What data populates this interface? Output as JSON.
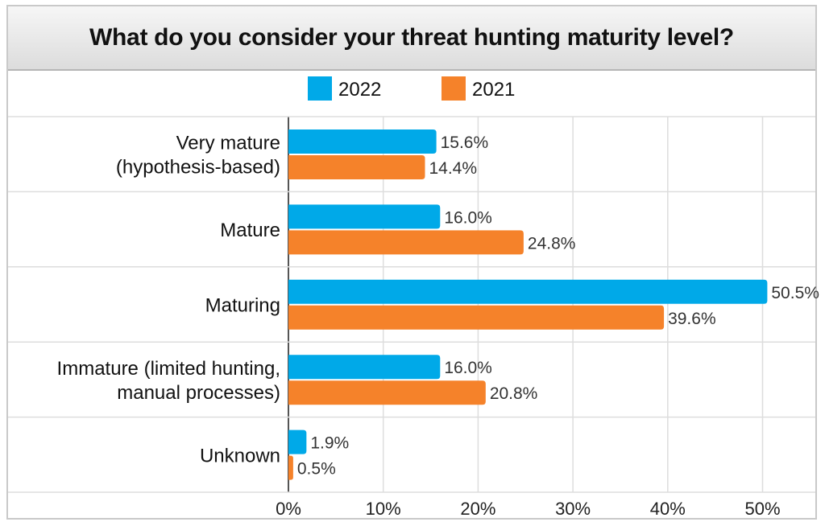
{
  "chart_data": {
    "type": "bar",
    "orientation": "horizontal",
    "title": "What do you consider your threat hunting maturity level?",
    "categories": [
      [
        "Very mature",
        "(hypothesis-based)"
      ],
      [
        "Mature"
      ],
      [
        "Maturing"
      ],
      [
        "Immature (limited hunting,",
        "manual processes)"
      ],
      [
        "Unknown"
      ]
    ],
    "series": [
      {
        "name": "2022",
        "color": "#00a9e8",
        "values": [
          15.6,
          16.0,
          50.5,
          16.0,
          1.9
        ],
        "labels": [
          "15.6%",
          "16.0%",
          "50.5%",
          "16.0%",
          "1.9%"
        ]
      },
      {
        "name": "2021",
        "color": "#f5822a",
        "values": [
          14.4,
          24.8,
          39.6,
          20.8,
          0.5
        ],
        "labels": [
          "14.4%",
          "24.8%",
          "39.6%",
          "20.8%",
          "0.5%"
        ]
      }
    ],
    "xlim": [
      0,
      55
    ],
    "xticks": [
      0,
      10,
      20,
      30,
      40,
      50
    ],
    "xtick_labels": [
      "0%",
      "10%",
      "20%",
      "30%",
      "40%",
      "50%"
    ],
    "grid": true,
    "legend_position": "top-center"
  }
}
